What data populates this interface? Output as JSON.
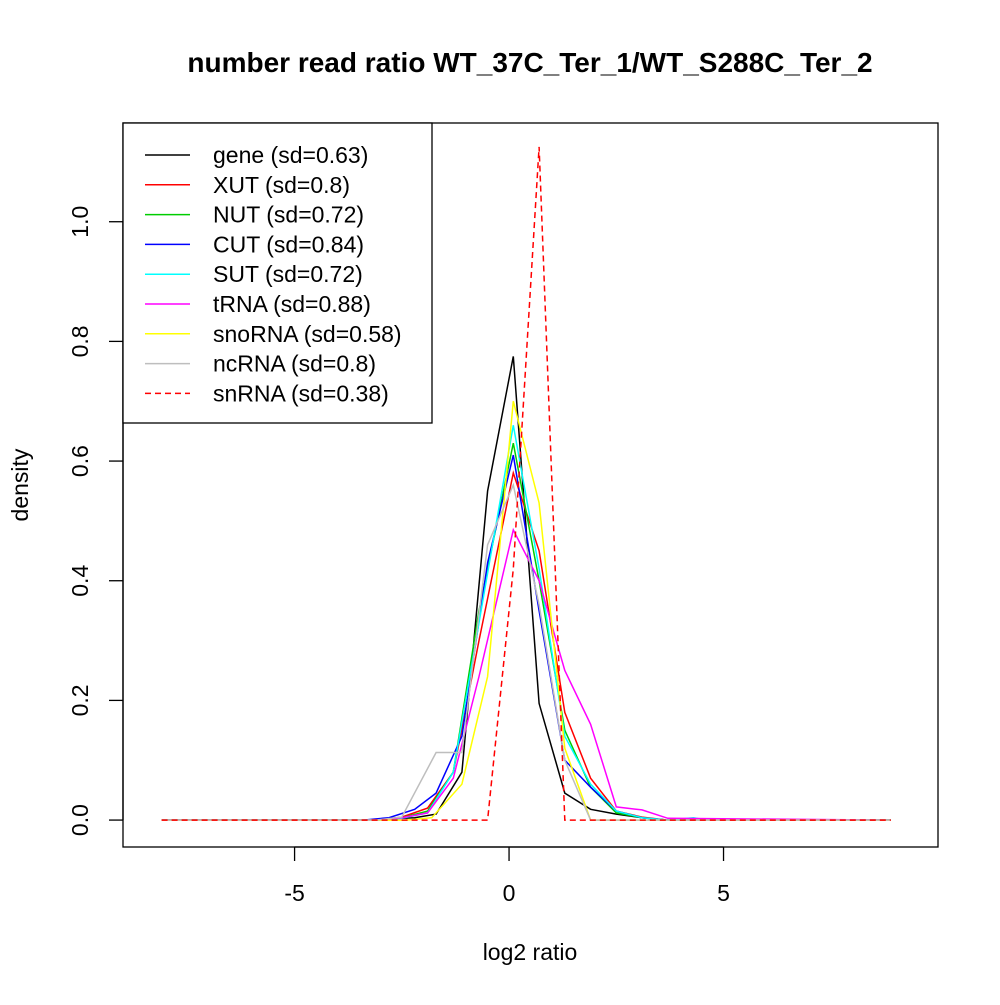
{
  "chart_data": {
    "type": "line",
    "title": "number read ratio WT_37C_Ter_1/WT_S288C_Ter_2",
    "xlabel": "log2 ratio",
    "ylabel": "density",
    "xlim": [
      -9.0,
      10.0
    ],
    "ylim": [
      -0.045,
      1.165
    ],
    "x_ticks": [
      -5,
      0,
      5
    ],
    "x_tick_labels": [
      "-5",
      "0",
      "5"
    ],
    "y_ticks": [
      0.0,
      0.2,
      0.4,
      0.6,
      0.8,
      1.0
    ],
    "y_tick_labels": [
      "0.0",
      "0.2",
      "0.4",
      "0.6",
      "0.8",
      "1.0"
    ],
    "grid": false,
    "legend_position": "top-left",
    "series": [
      {
        "name": "gene (sd=0.63)",
        "color": "#000000",
        "dash": "solid",
        "x": [
          -8.1,
          -3.3,
          -2.8,
          -2.2,
          -1.7,
          -1.1,
          -0.5,
          0.1,
          0.7,
          1.3,
          1.9,
          2.5,
          3.1,
          3.7,
          8.9
        ],
        "y": [
          0,
          0,
          0.002,
          0.004,
          0.01,
          0.08,
          0.55,
          0.775,
          0.195,
          0.045,
          0.018,
          0.01,
          0.004,
          0,
          0
        ]
      },
      {
        "name": "XUT (sd=0.8)",
        "color": "#FF0000",
        "dash": "solid",
        "x": [
          -8.1,
          -3.1,
          -2.5,
          -1.9,
          -1.3,
          -0.7,
          0.1,
          0.7,
          1.3,
          1.9,
          2.5,
          3.1,
          3.7,
          8.9
        ],
        "y": [
          0,
          0,
          0.005,
          0.02,
          0.08,
          0.3,
          0.58,
          0.45,
          0.18,
          0.07,
          0.015,
          0.005,
          0,
          0
        ]
      },
      {
        "name": "NUT (sd=0.72)",
        "color": "#00CD00",
        "dash": "solid",
        "x": [
          -8.1,
          -3.1,
          -2.5,
          -1.9,
          -1.3,
          -0.7,
          0.1,
          0.7,
          1.3,
          1.9,
          2.5,
          3.1,
          3.7,
          8.9
        ],
        "y": [
          0,
          0,
          0.004,
          0.015,
          0.08,
          0.35,
          0.63,
          0.4,
          0.15,
          0.055,
          0.012,
          0.004,
          0,
          0
        ]
      },
      {
        "name": "CUT (sd=0.84)",
        "color": "#0000FF",
        "dash": "solid",
        "x": [
          -8.1,
          -3.4,
          -2.8,
          -2.2,
          -1.7,
          -1.1,
          -0.5,
          0.1,
          0.7,
          1.3,
          1.9,
          2.5,
          3.1,
          3.7,
          8.9
        ],
        "y": [
          0,
          0,
          0.004,
          0.018,
          0.045,
          0.14,
          0.43,
          0.61,
          0.35,
          0.1,
          0.055,
          0.015,
          0.004,
          0,
          0
        ]
      },
      {
        "name": "SUT (sd=0.72)",
        "color": "#00FFFF",
        "dash": "solid",
        "x": [
          -8.1,
          -3.1,
          -2.5,
          -1.9,
          -1.3,
          -0.7,
          0.1,
          0.7,
          1.3,
          1.9,
          2.5,
          3.1,
          3.7,
          4.3,
          4.6,
          8.9
        ],
        "y": [
          0,
          0,
          0.003,
          0.012,
          0.08,
          0.33,
          0.66,
          0.42,
          0.14,
          0.06,
          0.015,
          0.004,
          0,
          0.004,
          0,
          0
        ]
      },
      {
        "name": "tRNA (sd=0.88)",
        "color": "#FF00FF",
        "dash": "solid",
        "x": [
          -8.1,
          -3.1,
          -2.5,
          -1.9,
          -1.3,
          -0.7,
          0.1,
          0.7,
          1.3,
          1.9,
          2.5,
          3.1,
          3.7,
          8.9
        ],
        "y": [
          0,
          0,
          0.004,
          0.012,
          0.07,
          0.24,
          0.485,
          0.4,
          0.25,
          0.16,
          0.022,
          0.017,
          0.003,
          0
        ]
      },
      {
        "name": "snoRNA (sd=0.58)",
        "color": "#FFFF00",
        "dash": "solid",
        "x": [
          -8.1,
          -2.4,
          -1.8,
          -1.1,
          -0.5,
          0.1,
          0.7,
          1.3,
          1.9,
          8.9
        ],
        "y": [
          0,
          0,
          0.004,
          0.06,
          0.24,
          0.7,
          0.53,
          0.12,
          0,
          0
        ]
      },
      {
        "name": "ncRNA (sd=0.8)",
        "color": "#BEBEBE",
        "dash": "solid",
        "x": [
          -8.1,
          -3.1,
          -2.5,
          -1.7,
          -1.1,
          -0.5,
          0.1,
          0.7,
          1.3,
          1.9,
          8.9
        ],
        "y": [
          0,
          0,
          0.005,
          0.113,
          0.113,
          0.46,
          0.56,
          0.36,
          0.1,
          0,
          0
        ]
      },
      {
        "name": "snRNA (sd=0.38)",
        "color": "#FF0000",
        "dash": "dashed",
        "x": [
          -8.1,
          -0.5,
          0.1,
          0.7,
          1.3,
          8.9
        ],
        "y": [
          0,
          0,
          0.42,
          1.125,
          0,
          0
        ]
      }
    ]
  }
}
